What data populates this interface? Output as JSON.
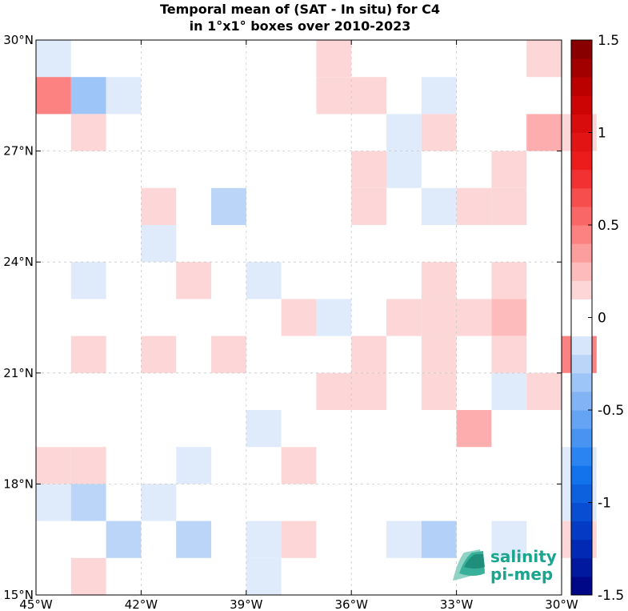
{
  "chart_data": {
    "type": "heatmap",
    "title": [
      "Temporal mean of (SAT - In situ) for C4",
      "in 1°x1° boxes over 2010-2023"
    ],
    "xlim": [
      -45,
      -30
    ],
    "ylim": [
      15,
      30
    ],
    "x_ticks": [
      {
        "value": -45,
        "label": "45°W"
      },
      {
        "value": -42,
        "label": "42°W"
      },
      {
        "value": -39,
        "label": "39°W"
      },
      {
        "value": -36,
        "label": "36°W"
      },
      {
        "value": -33,
        "label": "33°W"
      },
      {
        "value": -30,
        "label": "30°W"
      }
    ],
    "y_ticks": [
      {
        "value": 30,
        "label": "30°N"
      },
      {
        "value": 27,
        "label": "27°N"
      },
      {
        "value": 24,
        "label": "24°N"
      },
      {
        "value": 21,
        "label": "21°N"
      },
      {
        "value": 18,
        "label": "18°N"
      },
      {
        "value": 15,
        "label": "15°N"
      }
    ],
    "grid": true,
    "colorbar": {
      "range": [
        -1.5,
        1.5
      ],
      "levels": 30,
      "ticks": [
        {
          "value": 1.5,
          "label": "1.5"
        },
        {
          "value": 1.0,
          "label": "1"
        },
        {
          "value": 0.5,
          "label": "0.5"
        },
        {
          "value": 0.0,
          "label": "0"
        },
        {
          "value": -0.5,
          "label": "-0.5"
        },
        {
          "value": -1.0,
          "label": "-1"
        },
        {
          "value": -1.5,
          "label": "-1.5"
        }
      ]
    },
    "cell_size_deg": 1,
    "cells": [
      {
        "lon": -45,
        "lat": 29,
        "value": -0.12
      },
      {
        "lon": -37,
        "lat": 29,
        "value": 0.15
      },
      {
        "lon": -31,
        "lat": 29,
        "value": 0.15
      },
      {
        "lon": -45,
        "lat": 28,
        "value": 0.45
      },
      {
        "lon": -44,
        "lat": 28,
        "value": -0.35
      },
      {
        "lon": -43,
        "lat": 28,
        "value": -0.12
      },
      {
        "lon": -37,
        "lat": 28,
        "value": 0.15
      },
      {
        "lon": -36,
        "lat": 28,
        "value": 0.15
      },
      {
        "lon": -34,
        "lat": 28,
        "value": -0.12
      },
      {
        "lon": -44,
        "lat": 27,
        "value": 0.15
      },
      {
        "lon": -35,
        "lat": 27,
        "value": -0.12
      },
      {
        "lon": -34,
        "lat": 27,
        "value": 0.15
      },
      {
        "lon": -31,
        "lat": 27,
        "value": 0.3
      },
      {
        "lon": -30,
        "lat": 27,
        "value": 0.15
      },
      {
        "lon": -36,
        "lat": 26,
        "value": 0.15
      },
      {
        "lon": -35,
        "lat": 26,
        "value": -0.12
      },
      {
        "lon": -32,
        "lat": 26,
        "value": 0.15
      },
      {
        "lon": -42,
        "lat": 25,
        "value": 0.15
      },
      {
        "lon": -40,
        "lat": 25,
        "value": -0.25
      },
      {
        "lon": -36,
        "lat": 25,
        "value": 0.15
      },
      {
        "lon": -34,
        "lat": 25,
        "value": -0.12
      },
      {
        "lon": -33,
        "lat": 25,
        "value": 0.15
      },
      {
        "lon": -32,
        "lat": 25,
        "value": 0.15
      },
      {
        "lon": -42,
        "lat": 24,
        "value": -0.12
      },
      {
        "lon": -44,
        "lat": 23,
        "value": -0.12
      },
      {
        "lon": -41,
        "lat": 23,
        "value": 0.15
      },
      {
        "lon": -39,
        "lat": 23,
        "value": -0.12
      },
      {
        "lon": -34,
        "lat": 23,
        "value": 0.15
      },
      {
        "lon": -32,
        "lat": 23,
        "value": 0.15
      },
      {
        "lon": -38,
        "lat": 22,
        "value": 0.15
      },
      {
        "lon": -37,
        "lat": 22,
        "value": -0.12
      },
      {
        "lon": -35,
        "lat": 22,
        "value": 0.15
      },
      {
        "lon": -34,
        "lat": 22,
        "value": 0.15
      },
      {
        "lon": -33,
        "lat": 22,
        "value": 0.15
      },
      {
        "lon": -32,
        "lat": 22,
        "value": 0.25
      },
      {
        "lon": -44,
        "lat": 21,
        "value": 0.15
      },
      {
        "lon": -42,
        "lat": 21,
        "value": 0.15
      },
      {
        "lon": -40,
        "lat": 21,
        "value": 0.15
      },
      {
        "lon": -36,
        "lat": 21,
        "value": 0.15
      },
      {
        "lon": -34,
        "lat": 21,
        "value": 0.15
      },
      {
        "lon": -32,
        "lat": 21,
        "value": 0.15
      },
      {
        "lon": -30,
        "lat": 21,
        "value": 0.45
      },
      {
        "lon": -37,
        "lat": 20,
        "value": 0.15
      },
      {
        "lon": -36,
        "lat": 20,
        "value": 0.15
      },
      {
        "lon": -34,
        "lat": 20,
        "value": 0.15
      },
      {
        "lon": -32,
        "lat": 20,
        "value": -0.12
      },
      {
        "lon": -31,
        "lat": 20,
        "value": 0.15
      },
      {
        "lon": -39,
        "lat": 19,
        "value": -0.12
      },
      {
        "lon": -33,
        "lat": 19,
        "value": 0.3
      },
      {
        "lon": -45,
        "lat": 18,
        "value": 0.15
      },
      {
        "lon": -44,
        "lat": 18,
        "value": 0.15
      },
      {
        "lon": -41,
        "lat": 18,
        "value": -0.12
      },
      {
        "lon": -38,
        "lat": 18,
        "value": 0.15
      },
      {
        "lon": -30,
        "lat": 18,
        "value": -0.12
      },
      {
        "lon": -45,
        "lat": 17,
        "value": -0.12
      },
      {
        "lon": -44,
        "lat": 17,
        "value": -0.25
      },
      {
        "lon": -42,
        "lat": 17,
        "value": -0.12
      },
      {
        "lon": -30,
        "lat": 17,
        "value": -0.12
      },
      {
        "lon": -43,
        "lat": 16,
        "value": -0.25
      },
      {
        "lon": -41,
        "lat": 16,
        "value": -0.25
      },
      {
        "lon": -39,
        "lat": 16,
        "value": -0.12
      },
      {
        "lon": -38,
        "lat": 16,
        "value": 0.15
      },
      {
        "lon": -35,
        "lat": 16,
        "value": -0.12
      },
      {
        "lon": -34,
        "lat": 16,
        "value": -0.28
      },
      {
        "lon": -32,
        "lat": 16,
        "value": -0.12
      },
      {
        "lon": -30,
        "lat": 16,
        "value": 0.15
      },
      {
        "lon": -44,
        "lat": 15,
        "value": 0.15
      },
      {
        "lon": -39,
        "lat": 15,
        "value": -0.12
      }
    ]
  },
  "logo": {
    "line1": "salinity",
    "line2": "pi-mep",
    "color": "#1aa58f"
  }
}
